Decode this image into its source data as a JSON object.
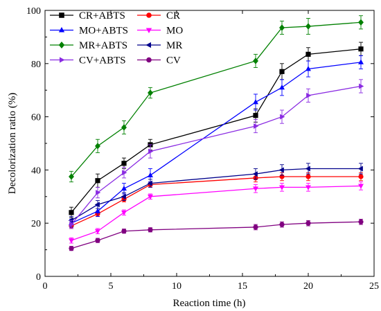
{
  "chart_data": {
    "type": "line",
    "xlabel": "Reaction time (h)",
    "ylabel": "Decolorization ratio (%)",
    "xlim": [
      0,
      25
    ],
    "ylim": [
      0,
      100
    ],
    "xticks": [
      0,
      5,
      10,
      15,
      20,
      25
    ],
    "yticks": [
      0,
      20,
      40,
      60,
      80,
      100
    ],
    "grid": false,
    "legend_position": "top-left",
    "x": [
      2,
      4,
      6,
      8,
      16,
      18,
      20,
      24
    ],
    "series": [
      {
        "name": "CR+ABTS",
        "color": "#000000",
        "marker": "square",
        "values": [
          24,
          36,
          42.5,
          49.5,
          60.5,
          77,
          83.5,
          85.5
        ],
        "errors": [
          2,
          2.5,
          2,
          2,
          2.5,
          3,
          2.5,
          2.5
        ]
      },
      {
        "name": "CR",
        "color": "#ff0000",
        "marker": "circle",
        "values": [
          19,
          23.5,
          29,
          34.5,
          37,
          37.5,
          37.5,
          37.5
        ],
        "errors": [
          1,
          1,
          1,
          1,
          1.5,
          1.5,
          1.5,
          1.5
        ]
      },
      {
        "name": "MO+ABTS",
        "color": "#0000ff",
        "marker": "triangle-up",
        "values": [
          20,
          24.5,
          33,
          38,
          65.5,
          71,
          78,
          80.5
        ],
        "errors": [
          1.5,
          2,
          2,
          2.5,
          3,
          3,
          3,
          2.5
        ]
      },
      {
        "name": "MO",
        "color": "#ff00ff",
        "marker": "triangle-down",
        "values": [
          13.5,
          17,
          24,
          30,
          33,
          33.5,
          33.5,
          34
        ],
        "errors": [
          1,
          1,
          1,
          1,
          1.5,
          1.5,
          1.5,
          1.5
        ]
      },
      {
        "name": "MR+ABTS",
        "color": "#008000",
        "marker": "diamond",
        "values": [
          37.5,
          49,
          56,
          69,
          81,
          93.5,
          94,
          95.5
        ],
        "errors": [
          2,
          2.5,
          2.5,
          2,
          2.5,
          2.5,
          3,
          2.5
        ]
      },
      {
        "name": "MR",
        "color": "#00008b",
        "marker": "triangle-left",
        "values": [
          21,
          27,
          30,
          35,
          38.5,
          40,
          40.5,
          40.5
        ],
        "errors": [
          1.5,
          1.5,
          1.5,
          1.5,
          2,
          2,
          2,
          2
        ]
      },
      {
        "name": "CV+ABTS",
        "color": "#8a2be2",
        "marker": "triangle-right",
        "values": [
          19.5,
          31.5,
          39,
          47,
          56.5,
          60,
          68,
          71.5
        ],
        "errors": [
          1.5,
          2,
          2,
          2.5,
          2.5,
          2.5,
          2.5,
          2.5
        ]
      },
      {
        "name": "CV",
        "color": "#800080",
        "marker": "circle",
        "values": [
          10.5,
          13.5,
          17,
          17.5,
          18.5,
          19.5,
          20,
          20.5
        ],
        "errors": [
          0.8,
          0.8,
          0.8,
          0.8,
          1,
          1,
          1,
          1
        ]
      }
    ]
  }
}
